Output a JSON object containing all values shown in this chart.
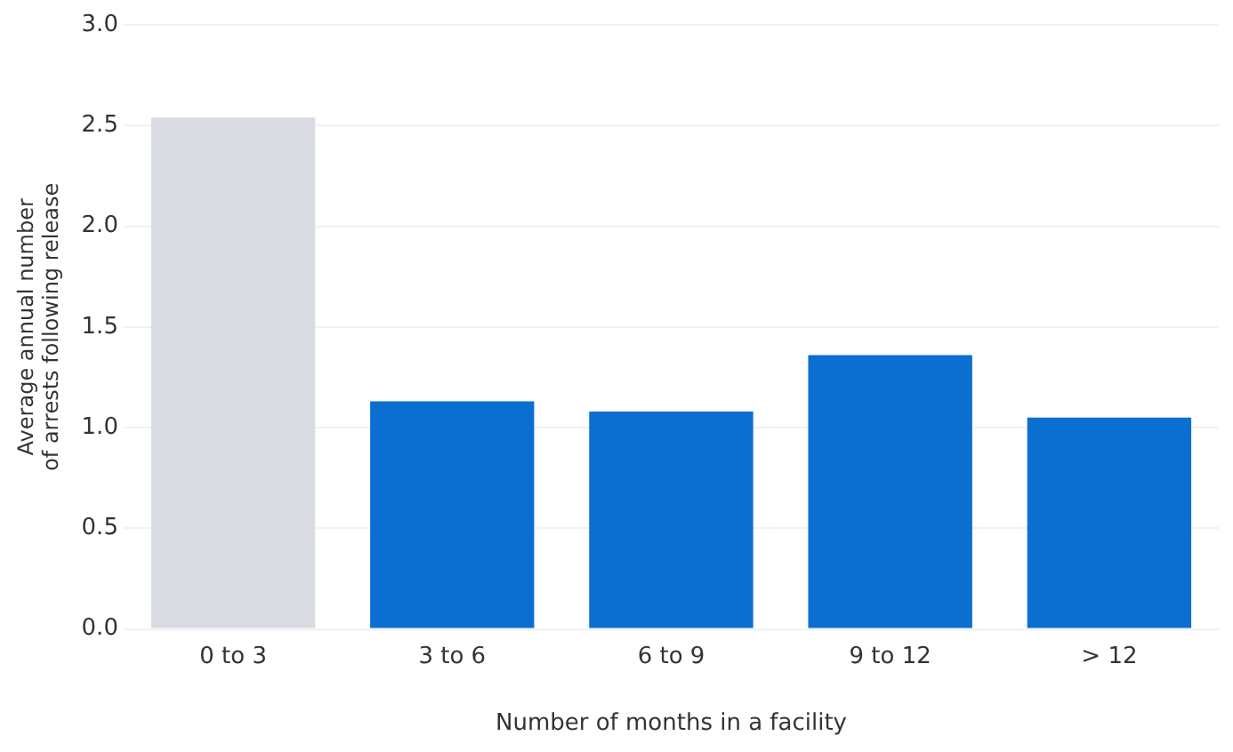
{
  "chart_data": {
    "type": "bar",
    "xlabel": "Number of months in a facility",
    "ylabel": "Average annual number\nof arrests following release",
    "categories": [
      "0 to 3",
      "3 to 6",
      "6 to 9",
      "9 to 12",
      "> 12"
    ],
    "values": [
      2.54,
      1.13,
      1.08,
      1.36,
      1.05
    ],
    "colors": [
      "#d8dbe1",
      "#0a6fd1",
      "#0a6fd1",
      "#0a6fd1",
      "#0a6fd1"
    ],
    "ylim": [
      0,
      3
    ],
    "yticks": [
      {
        "value": 0,
        "label": "0.0"
      },
      {
        "value": 0.5,
        "label": "0.5"
      },
      {
        "value": 1,
        "label": "1.0"
      },
      {
        "value": 1.5,
        "label": "1.5"
      },
      {
        "value": 2,
        "label": "2.0"
      },
      {
        "value": 2.5,
        "label": "2.5"
      },
      {
        "value": 3,
        "label": "3.0"
      }
    ],
    "grid": "y",
    "legend": false
  }
}
